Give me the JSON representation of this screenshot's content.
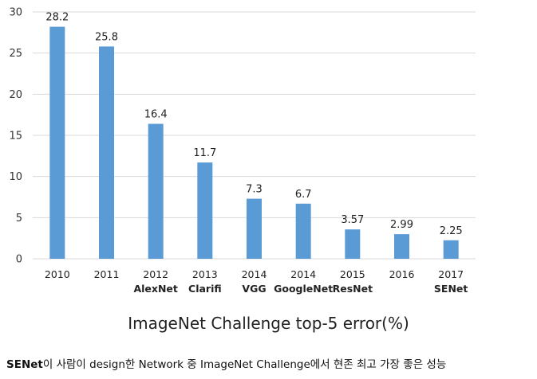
{
  "chart_data": {
    "type": "bar",
    "title": "ImageNet Challenge top-5 error(%)",
    "categories": [
      "2010",
      "2011",
      "2012",
      "2013",
      "2014",
      "2014",
      "2015",
      "2016",
      "2017"
    ],
    "category_sublabels": [
      "",
      "",
      "AlexNet",
      "Clarifi",
      "VGG",
      "GoogleNet",
      "ResNet",
      "",
      "SENet"
    ],
    "values": [
      28.2,
      25.8,
      16.4,
      11.7,
      7.3,
      6.7,
      3.57,
      2.99,
      2.25
    ],
    "value_labels": [
      "28.2",
      "25.8",
      "16.4",
      "11.7",
      "7.3",
      "6.7",
      "3.57",
      "2.99",
      "2.25"
    ],
    "ylim": [
      0,
      30
    ],
    "yticks": [
      0,
      5,
      10,
      15,
      20,
      25,
      30
    ],
    "grid": true,
    "bar_color": "#5b9bd5",
    "grid_color": "#d9d9d9"
  },
  "caption": {
    "bold": "SENet",
    "text": "이 사람이 design한 Network 중 ImageNet Challenge에서 현존 최고 가장 좋은 성능"
  }
}
